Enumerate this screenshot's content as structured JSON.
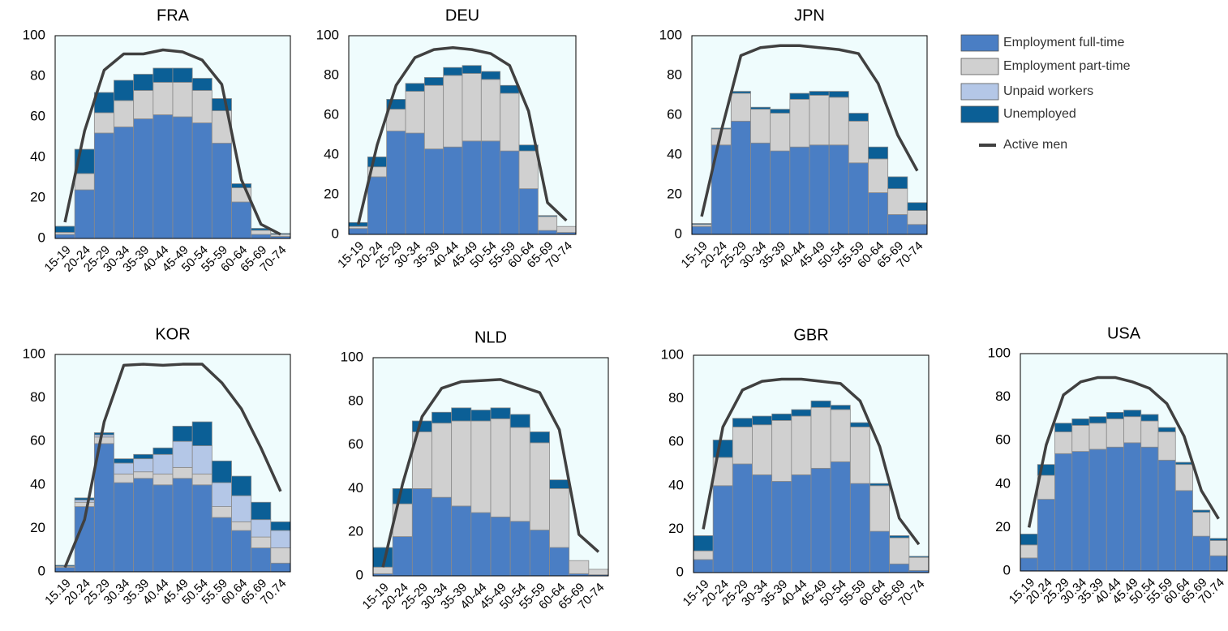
{
  "chart_data": [
    {
      "type": "bar",
      "stacked": true,
      "title": "FRA",
      "categories": [
        "15-19",
        "20-24",
        "25-29",
        "30-34",
        "35-39",
        "40-44",
        "45-49",
        "50-54",
        "55-59",
        "60-64",
        "65-69",
        "70-74"
      ],
      "ylim": [
        0,
        100
      ],
      "yticks": [
        0,
        20,
        40,
        60,
        80,
        100
      ],
      "series": [
        {
          "name": "Employment full-time",
          "color": "#4a7ec4",
          "values": [
            2,
            24,
            52,
            55,
            59,
            61,
            60,
            57,
            47,
            18,
            2,
            1
          ]
        },
        {
          "name": "Employment part-time",
          "color": "#d0d0d0",
          "values": [
            1,
            8,
            10,
            13,
            14,
            16,
            17,
            16,
            16,
            7,
            2,
            1
          ]
        },
        {
          "name": "Unpaid workers",
          "color": "#b4c7e7",
          "values": [
            0,
            0,
            0,
            0,
            0,
            0,
            0,
            0,
            0,
            0,
            0,
            0
          ]
        },
        {
          "name": "Unemployed",
          "color": "#0b5f96",
          "values": [
            3,
            12,
            10,
            10,
            8,
            7,
            7,
            6,
            6,
            2,
            1,
            0.5
          ]
        },
        {
          "name": "Active men",
          "type": "line",
          "color": "#404040",
          "values": [
            8,
            53,
            83,
            91,
            91,
            93,
            92,
            88,
            76,
            29,
            7,
            2
          ]
        }
      ]
    },
    {
      "type": "bar",
      "stacked": true,
      "title": "DEU",
      "categories": [
        "15-19",
        "20-24",
        "25-29",
        "30-34",
        "35-39",
        "40-44",
        "45-49",
        "50-54",
        "55-59",
        "60-64",
        "65-69",
        "70-74"
      ],
      "ylim": [
        0,
        100
      ],
      "yticks": [
        0,
        20,
        40,
        60,
        80,
        100
      ],
      "series": [
        {
          "name": "Employment full-time",
          "color": "#4a7ec4",
          "values": [
            3,
            29,
            52,
            51,
            43,
            44,
            47,
            47,
            42,
            23,
            2,
            1
          ]
        },
        {
          "name": "Employment part-time",
          "color": "#d0d0d0",
          "values": [
            1,
            5,
            11,
            21,
            32,
            36,
            34,
            31,
            29,
            19,
            7,
            3
          ]
        },
        {
          "name": "Unpaid workers",
          "color": "#b4c7e7",
          "values": [
            0,
            0,
            0,
            0,
            0,
            0,
            0,
            0,
            0,
            0,
            0,
            0
          ]
        },
        {
          "name": "Unemployed",
          "color": "#0b5f96",
          "values": [
            2,
            5,
            5,
            4,
            4,
            4,
            4,
            4,
            4,
            3,
            0.5,
            0
          ]
        },
        {
          "name": "Active men",
          "type": "line",
          "color": "#404040",
          "values": [
            5,
            45,
            75,
            89,
            93,
            94,
            93,
            91,
            85,
            62,
            16,
            7
          ]
        }
      ]
    },
    {
      "type": "bar",
      "stacked": true,
      "title": "JPN",
      "categories": [
        "15-19",
        "20-24",
        "25-29",
        "30-34",
        "35-39",
        "40-44",
        "45-49",
        "50-54",
        "55-59",
        "60-64",
        "65-69",
        "70-74"
      ],
      "ylim": [
        0,
        100
      ],
      "yticks": [
        0,
        20,
        40,
        60,
        80,
        100
      ],
      "series": [
        {
          "name": "Employment full-time",
          "color": "#4a7ec4",
          "values": [
            4,
            45,
            57,
            46,
            42,
            44,
            45,
            45,
            36,
            21,
            10,
            5
          ]
        },
        {
          "name": "Employment part-time",
          "color": "#d0d0d0",
          "values": [
            1,
            8,
            14,
            17,
            19,
            24,
            25,
            24,
            21,
            17,
            13,
            7
          ]
        },
        {
          "name": "Unpaid workers",
          "color": "#b4c7e7",
          "values": [
            0,
            0,
            0,
            0,
            0,
            0,
            0,
            0,
            0,
            0,
            0,
            0
          ]
        },
        {
          "name": "Unemployed",
          "color": "#0b5f96",
          "values": [
            0.5,
            0.5,
            1,
            1,
            2,
            3,
            2,
            3,
            4,
            6,
            6,
            4
          ]
        },
        {
          "name": "Active men",
          "type": "line",
          "color": "#404040",
          "values": [
            9,
            52,
            90,
            94,
            95,
            95,
            94,
            93,
            91,
            76,
            50,
            32
          ]
        }
      ]
    },
    {
      "type": "bar",
      "stacked": true,
      "title": "KOR",
      "categories": [
        "15.19",
        "20.24",
        "25.29",
        "30.34",
        "35.39",
        "40.44",
        "45.49",
        "50.54",
        "55.59",
        "60.64",
        "65.69",
        "70.74"
      ],
      "ylim": [
        0,
        100
      ],
      "yticks": [
        0,
        20,
        40,
        60,
        80,
        100
      ],
      "series": [
        {
          "name": "Employment full-time",
          "color": "#4a7ec4",
          "values": [
            2,
            30,
            59,
            41,
            43,
            40,
            43,
            40,
            25,
            19,
            11,
            4
          ]
        },
        {
          "name": "Employment part-time",
          "color": "#d0d0d0",
          "values": [
            0.5,
            2,
            3,
            4,
            3,
            5,
            5,
            5,
            5,
            4,
            5,
            7
          ]
        },
        {
          "name": "Unpaid workers",
          "color": "#b4c7e7",
          "values": [
            0,
            1,
            1,
            5,
            6,
            9,
            12,
            13,
            11,
            12,
            8,
            8
          ]
        },
        {
          "name": "Unemployed",
          "color": "#0b5f96",
          "values": [
            0.5,
            1,
            1,
            2,
            2,
            3,
            7,
            11,
            10,
            9,
            8,
            4
          ]
        },
        {
          "name": "Active men",
          "type": "line",
          "color": "#404040",
          "values": [
            2,
            24,
            69,
            95,
            95.5,
            95,
            95.5,
            95.5,
            87,
            75,
            57,
            37
          ]
        }
      ]
    },
    {
      "type": "bar",
      "stacked": true,
      "title": "NLD",
      "categories": [
        "15-19",
        "20-24",
        "25-29",
        "30-34",
        "35-39",
        "40-44",
        "45-49",
        "50-54",
        "55-59",
        "60-64",
        "65-69",
        "70-74"
      ],
      "ylim": [
        0,
        100
      ],
      "yticks": [
        0,
        20,
        40,
        60,
        80,
        100
      ],
      "series": [
        {
          "name": "Employment full-time",
          "color": "#4a7ec4",
          "values": [
            1,
            18,
            40,
            36,
            32,
            29,
            27,
            25,
            21,
            13,
            1,
            0.5
          ]
        },
        {
          "name": "Employment part-time",
          "color": "#d0d0d0",
          "values": [
            3,
            15,
            26,
            34,
            39,
            42,
            45,
            43,
            40,
            27,
            6,
            2.5
          ]
        },
        {
          "name": "Unpaid workers",
          "color": "#b4c7e7",
          "values": [
            0,
            0,
            0,
            0,
            0,
            0,
            0,
            0,
            0,
            0,
            0,
            0
          ]
        },
        {
          "name": "Unemployed",
          "color": "#0b5f96",
          "values": [
            9,
            7,
            5,
            5,
            6,
            5,
            5,
            6,
            5,
            4,
            0,
            0
          ]
        },
        {
          "name": "Active men",
          "type": "line",
          "color": "#404040",
          "values": [
            4,
            42,
            73,
            86,
            89,
            89.5,
            90,
            87,
            84,
            67,
            19,
            11
          ]
        }
      ]
    },
    {
      "type": "bar",
      "stacked": true,
      "title": "GBR",
      "categories": [
        "15-19",
        "20-24",
        "25-29",
        "30-34",
        "35-39",
        "40-44",
        "45-49",
        "50-54",
        "55-59",
        "60-64",
        "65-69",
        "70-74"
      ],
      "ylim": [
        0,
        100
      ],
      "yticks": [
        0,
        20,
        40,
        60,
        80,
        100
      ],
      "series": [
        {
          "name": "Employment full-time",
          "color": "#4a7ec4",
          "values": [
            6,
            40,
            50,
            45,
            42,
            45,
            48,
            51,
            41,
            19,
            4,
            1
          ]
        },
        {
          "name": "Employment part-time",
          "color": "#d0d0d0",
          "values": [
            4,
            13,
            17,
            23,
            28,
            27,
            28,
            24,
            26,
            21,
            12,
            6
          ]
        },
        {
          "name": "Unpaid workers",
          "color": "#b4c7e7",
          "values": [
            0,
            0,
            0,
            0,
            0,
            0,
            0,
            0,
            0,
            0,
            0,
            0
          ]
        },
        {
          "name": "Unemployed",
          "color": "#0b5f96",
          "values": [
            7,
            8,
            4,
            4,
            3,
            3,
            3,
            2,
            2,
            1,
            1,
            0.5
          ]
        },
        {
          "name": "Active men",
          "type": "line",
          "color": "#404040",
          "values": [
            20,
            67,
            84,
            88,
            89,
            89,
            88,
            87,
            79,
            58,
            25,
            13
          ]
        }
      ]
    },
    {
      "type": "bar",
      "stacked": true,
      "title": "USA",
      "categories": [
        "15.19",
        "20.24",
        "25.29",
        "30.34",
        "35.39",
        "40.44",
        "45.49",
        "50.54",
        "55.59",
        "60.64",
        "65.69",
        "70.74"
      ],
      "ylim": [
        0,
        100
      ],
      "yticks": [
        0,
        20,
        40,
        60,
        80,
        100
      ],
      "series": [
        {
          "name": "Employment full-time",
          "color": "#4a7ec4",
          "values": [
            6,
            33,
            54,
            55,
            56,
            57,
            59,
            57,
            51,
            37,
            16,
            7
          ]
        },
        {
          "name": "Employment part-time",
          "color": "#d0d0d0",
          "values": [
            6,
            11,
            10,
            12,
            12,
            13,
            12,
            12,
            13,
            12,
            11,
            7
          ]
        },
        {
          "name": "Unpaid workers",
          "color": "#b4c7e7",
          "values": [
            0,
            0,
            0,
            0,
            0,
            0,
            0,
            0,
            0,
            0,
            0,
            0
          ]
        },
        {
          "name": "Unemployed",
          "color": "#0b5f96",
          "values": [
            5,
            5,
            4,
            3,
            3,
            3,
            3,
            3,
            2,
            1,
            1,
            1
          ]
        },
        {
          "name": "Active men",
          "type": "line",
          "color": "#404040",
          "values": [
            20,
            58,
            81,
            87,
            89,
            89,
            87,
            84,
            77,
            62,
            37,
            24
          ]
        }
      ]
    }
  ]
}
